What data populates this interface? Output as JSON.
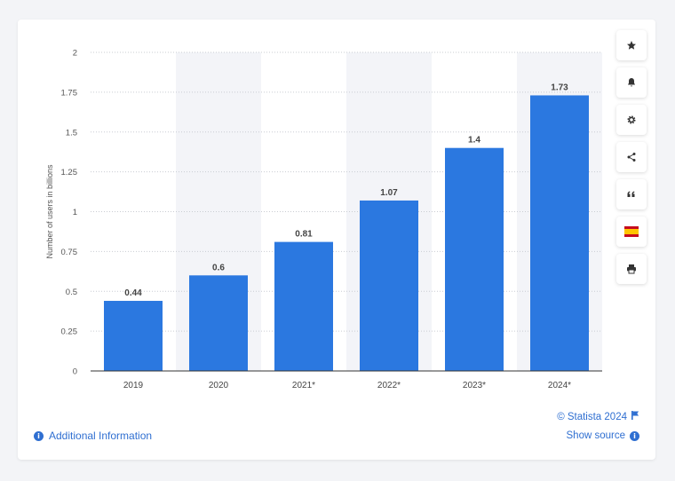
{
  "chart_data": {
    "type": "bar",
    "categories": [
      "2019",
      "2020",
      "2021*",
      "2022*",
      "2023*",
      "2024*"
    ],
    "values": [
      0.44,
      0.6,
      0.81,
      1.07,
      1.4,
      1.73
    ],
    "value_labels": [
      "0.44",
      "0.6",
      "0.81",
      "1.07",
      "1.4",
      "1.73"
    ],
    "title": "",
    "xlabel": "",
    "ylabel": "Number of users in billions",
    "ylim": [
      0,
      2
    ],
    "yticks": [
      0,
      0.25,
      0.5,
      0.75,
      1,
      1.25,
      1.5,
      1.75,
      2
    ],
    "ytick_labels": [
      "0",
      "0.25",
      "0.5",
      "0.75",
      "1",
      "1.25",
      "1.5",
      "1.75",
      "2"
    ],
    "grid": true,
    "bar_color": "#2b78e0",
    "band_color": "#f3f4f8"
  },
  "toolbar": {
    "icons": [
      "star-icon",
      "bell-icon",
      "gear-icon",
      "share-icon",
      "quote-icon",
      "flag-es-icon",
      "print-icon"
    ]
  },
  "footer": {
    "additional_info": "Additional Information",
    "copyright": "© Statista 2024",
    "show_source": "Show source"
  },
  "colors": {
    "link": "#2f6fd1",
    "axis_text": "#555555"
  }
}
